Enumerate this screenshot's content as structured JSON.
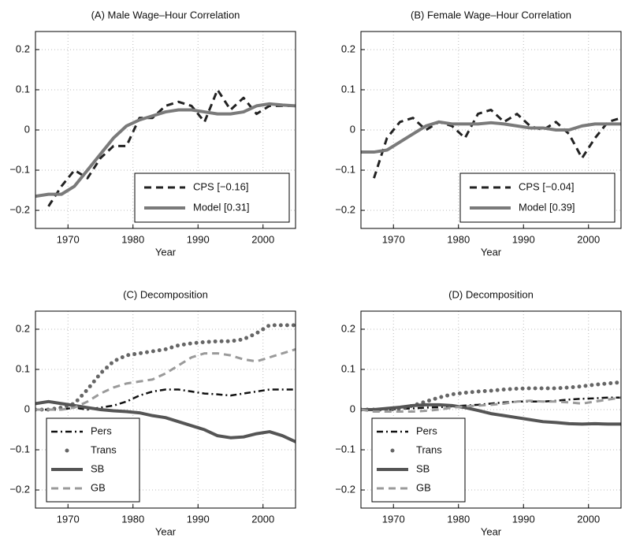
{
  "chart_data": [
    {
      "type": "line",
      "title": "(A) Male Wage–Hour Correlation",
      "xlabel": "Year",
      "x": [
        1965,
        1967,
        1969,
        1971,
        1973,
        1975,
        1977,
        1979,
        1981,
        1983,
        1985,
        1987,
        1989,
        1991,
        1993,
        1995,
        1997,
        1999,
        2001,
        2003,
        2005
      ],
      "xlim": [
        1965,
        2005
      ],
      "xticks": [
        1970,
        1980,
        1990,
        2000
      ],
      "ylim": [
        -0.245,
        0.245
      ],
      "yticks": [
        0.2,
        0.1,
        0,
        {
          "value": -0.1,
          "label": "−0.1"
        },
        {
          "value": -0.2,
          "label": "−0.2"
        }
      ],
      "grid": true,
      "legend": "lower right",
      "series": [
        {
          "name": "CPS [−0.16]",
          "color": "#222222",
          "style": "dashed",
          "values": [
            null,
            -0.19,
            -0.14,
            -0.1,
            -0.12,
            -0.07,
            -0.04,
            -0.04,
            0.03,
            0.03,
            0.06,
            0.07,
            0.06,
            0.02,
            0.1,
            0.05,
            0.08,
            0.04,
            0.06,
            0.06,
            0.06
          ]
        },
        {
          "name": "Model [0.31]",
          "color": "#7a7a7a",
          "style": "solid",
          "values": [
            -0.165,
            -0.16,
            -0.16,
            -0.14,
            -0.1,
            -0.06,
            -0.02,
            0.01,
            0.025,
            0.035,
            0.045,
            0.05,
            0.05,
            0.045,
            0.04,
            0.04,
            0.045,
            0.06,
            0.065,
            0.062,
            0.06
          ]
        }
      ]
    },
    {
      "type": "line",
      "title": "(B) Female Wage–Hour Correlation",
      "xlabel": "Year",
      "x": [
        1965,
        1967,
        1969,
        1971,
        1973,
        1975,
        1977,
        1979,
        1981,
        1983,
        1985,
        1987,
        1989,
        1991,
        1993,
        1995,
        1997,
        1999,
        2001,
        2003,
        2005
      ],
      "xlim": [
        1965,
        2005
      ],
      "xticks": [
        1970,
        1980,
        1990,
        2000
      ],
      "ylim": [
        -0.245,
        0.245
      ],
      "yticks": [
        0.2,
        0.1,
        0,
        {
          "value": -0.1,
          "label": "−0.1"
        },
        {
          "value": -0.2,
          "label": "−0.2"
        }
      ],
      "grid": true,
      "legend": "lower right",
      "series": [
        {
          "name": "CPS [−0.04]",
          "color": "#222222",
          "style": "dashed",
          "values": [
            null,
            -0.12,
            -0.02,
            0.02,
            0.03,
            0.0,
            0.02,
            0.01,
            -0.02,
            0.04,
            0.05,
            0.02,
            0.04,
            0.01,
            0.0,
            0.02,
            -0.01,
            -0.07,
            -0.02,
            0.02,
            0.03
          ]
        },
        {
          "name": "Model [0.39]",
          "color": "#7a7a7a",
          "style": "solid",
          "values": [
            -0.055,
            -0.055,
            -0.05,
            -0.03,
            -0.01,
            0.01,
            0.02,
            0.015,
            0.015,
            0.015,
            0.018,
            0.015,
            0.01,
            0.005,
            0.005,
            0.0,
            0.0,
            0.01,
            0.015,
            0.015,
            0.015
          ]
        }
      ]
    },
    {
      "type": "line",
      "title": "(C) Decomposition",
      "xlabel": "Year",
      "x": [
        1965,
        1967,
        1969,
        1971,
        1973,
        1975,
        1977,
        1979,
        1981,
        1983,
        1985,
        1987,
        1989,
        1991,
        1993,
        1995,
        1997,
        1999,
        2001,
        2003,
        2005
      ],
      "xlim": [
        1965,
        2005
      ],
      "xticks": [
        1970,
        1980,
        1990,
        2000
      ],
      "ylim": [
        -0.245,
        0.245
      ],
      "yticks": [
        0.2,
        0.1,
        0,
        {
          "value": -0.1,
          "label": "−0.1"
        },
        {
          "value": -0.2,
          "label": "−0.2"
        }
      ],
      "grid": true,
      "legend": "lower left",
      "series": [
        {
          "name": "Pers",
          "color": "#111111",
          "style": "dashdot",
          "values": [
            0,
            0,
            0,
            0.005,
            0,
            0.005,
            0.01,
            0.02,
            0.035,
            0.045,
            0.05,
            0.05,
            0.045,
            0.04,
            0.038,
            0.035,
            0.04,
            0.045,
            0.05,
            0.05,
            0.05
          ]
        },
        {
          "name": "Trans",
          "color": "#666666",
          "style": "dotted",
          "values": [
            0,
            0,
            0.005,
            0.015,
            0.05,
            0.09,
            0.12,
            0.135,
            0.14,
            0.145,
            0.15,
            0.16,
            0.165,
            0.168,
            0.17,
            0.17,
            0.175,
            0.19,
            0.21,
            0.21,
            0.21
          ]
        },
        {
          "name": "SB",
          "color": "#555555",
          "style": "solid",
          "values": [
            0.015,
            0.02,
            0.015,
            0.01,
            0.005,
            0.0,
            -0.003,
            -0.005,
            -0.008,
            -0.015,
            -0.02,
            -0.03,
            -0.04,
            -0.05,
            -0.065,
            -0.07,
            -0.068,
            -0.06,
            -0.055,
            -0.065,
            -0.08
          ]
        },
        {
          "name": "GB",
          "color": "#9a9a9a",
          "style": "dashed",
          "values": [
            0,
            0,
            0,
            0.005,
            0.02,
            0.04,
            0.055,
            0.065,
            0.07,
            0.075,
            0.09,
            0.11,
            0.13,
            0.14,
            0.14,
            0.135,
            0.125,
            0.12,
            0.13,
            0.14,
            0.15
          ]
        }
      ]
    },
    {
      "type": "line",
      "title": "(D) Decomposition",
      "xlabel": "Year",
      "x": [
        1965,
        1967,
        1969,
        1971,
        1973,
        1975,
        1977,
        1979,
        1981,
        1983,
        1985,
        1987,
        1989,
        1991,
        1993,
        1995,
        1997,
        1999,
        2001,
        2003,
        2005
      ],
      "xlim": [
        1965,
        2005
      ],
      "xticks": [
        1970,
        1980,
        1990,
        2000
      ],
      "ylim": [
        -0.245,
        0.245
      ],
      "yticks": [
        0.2,
        0.1,
        0,
        {
          "value": -0.1,
          "label": "−0.1"
        },
        {
          "value": -0.2,
          "label": "−0.2"
        }
      ],
      "grid": true,
      "legend": "lower left",
      "series": [
        {
          "name": "Pers",
          "color": "#111111",
          "style": "dashdot",
          "values": [
            0,
            0,
            0,
            0.002,
            0.003,
            0.005,
            0.006,
            0.008,
            0.01,
            0.012,
            0.015,
            0.018,
            0.02,
            0.02,
            0.02,
            0.022,
            0.025,
            0.027,
            0.028,
            0.03,
            0.03
          ]
        },
        {
          "name": "Trans",
          "color": "#666666",
          "style": "dotted",
          "values": [
            0,
            0,
            0,
            0.002,
            0.01,
            0.02,
            0.03,
            0.038,
            0.042,
            0.045,
            0.047,
            0.05,
            0.052,
            0.053,
            0.053,
            0.053,
            0.055,
            0.058,
            0.062,
            0.065,
            0.068
          ]
        },
        {
          "name": "SB",
          "color": "#555555",
          "style": "solid",
          "values": [
            0,
            0,
            0.003,
            0.006,
            0.01,
            0.012,
            0.012,
            0.01,
            0.005,
            -0.002,
            -0.01,
            -0.015,
            -0.02,
            -0.025,
            -0.03,
            -0.032,
            -0.035,
            -0.036,
            -0.035,
            -0.036,
            -0.036
          ]
        },
        {
          "name": "GB",
          "color": "#9a9a9a",
          "style": "dashed",
          "values": [
            0,
            -0.005,
            -0.005,
            -0.005,
            -0.005,
            -0.003,
            0.0,
            0.005,
            0.008,
            0.01,
            0.012,
            0.015,
            0.02,
            0.022,
            0.02,
            0.02,
            0.018,
            0.015,
            0.02,
            0.025,
            0.03
          ]
        }
      ]
    }
  ]
}
